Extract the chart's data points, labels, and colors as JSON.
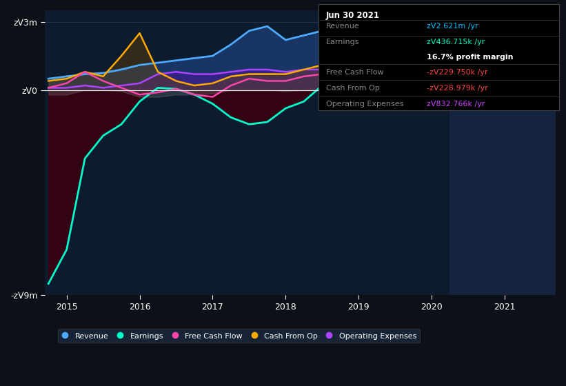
{
  "bg_color": "#0d1117",
  "plot_bg_color": "#0d1b2e",
  "title": "earnings-and-revenue-history",
  "ylabel_top": "zᐯ3m",
  "ylabel_bottom": "-zᐯ9m",
  "ylabel_zero": "zᐯ0",
  "ylim": [
    -9000000,
    3500000
  ],
  "yticks": [
    -9000000,
    0,
    3000000
  ],
  "ytick_labels": [
    "-zᐯ9m",
    "zᐯ0",
    "zᐯ3m"
  ],
  "xlim": [
    2014.7,
    2021.7
  ],
  "xticks": [
    2015,
    2016,
    2017,
    2018,
    2019,
    2020,
    2021
  ],
  "info_box": {
    "date": "Jun 30 2021",
    "revenue_label": "Revenue",
    "revenue_value": "zᐯ2.621m /yr",
    "revenue_color": "#00bfff",
    "earnings_label": "Earnings",
    "earnings_value": "zᐯ436.715k /yr",
    "earnings_color": "#00ffcc",
    "margin_label": "16.7% profit margin",
    "margin_color": "#ffffff",
    "fcf_label": "Free Cash Flow",
    "fcf_value": "-zᐯ229.750k /yr",
    "fcf_color": "#ff4444",
    "cashop_label": "Cash From Op",
    "cashop_value": "-zᐯ228.979k /yr",
    "cashop_color": "#ff4444",
    "opex_label": "Operating Expenses",
    "opex_value": "zᐯ832.766k /yr",
    "opex_color": "#cc44ff"
  },
  "legend": [
    {
      "label": "Revenue",
      "color": "#4daaff"
    },
    {
      "label": "Earnings",
      "color": "#00ffcc"
    },
    {
      "label": "Free Cash Flow",
      "color": "#ff44aa"
    },
    {
      "label": "Cash From Op",
      "color": "#ffaa00"
    },
    {
      "label": "Operating Expenses",
      "color": "#aa44ff"
    }
  ],
  "revenue": {
    "x": [
      2014.75,
      2015.0,
      2015.25,
      2015.5,
      2015.75,
      2016.0,
      2016.25,
      2016.5,
      2016.75,
      2017.0,
      2017.25,
      2017.5,
      2017.75,
      2018.0,
      2018.25,
      2018.5,
      2018.75,
      2019.0,
      2019.25,
      2019.5,
      2019.75,
      2020.0,
      2020.25,
      2020.5,
      2020.75,
      2021.0,
      2021.25,
      2021.5
    ],
    "y": [
      500000,
      600000,
      700000,
      750000,
      900000,
      1100000,
      1200000,
      1300000,
      1400000,
      1500000,
      2000000,
      2600000,
      2800000,
      2200000,
      2400000,
      2600000,
      2600000,
      2600000,
      2700000,
      2650000,
      2700000,
      2650000,
      2600000,
      2650000,
      2650000,
      2600000,
      2621000,
      2621000
    ],
    "color": "#4daaff",
    "fill_color": "#1a3a6e",
    "linewidth": 2.0
  },
  "earnings": {
    "x": [
      2014.75,
      2015.0,
      2015.25,
      2015.5,
      2015.75,
      2016.0,
      2016.25,
      2016.5,
      2016.75,
      2017.0,
      2017.25,
      2017.5,
      2017.75,
      2018.0,
      2018.25,
      2018.5,
      2018.75,
      2019.0,
      2019.25,
      2019.5,
      2019.75,
      2020.0,
      2020.25,
      2020.5,
      2020.75,
      2021.0,
      2021.25,
      2021.5
    ],
    "y": [
      -8500000,
      -7000000,
      -3000000,
      -2000000,
      -1500000,
      -500000,
      100000,
      50000,
      -200000,
      -600000,
      -1200000,
      -1500000,
      -1400000,
      -800000,
      -500000,
      200000,
      100000,
      100000,
      200000,
      300000,
      200000,
      100000,
      -100000,
      -200000,
      -300000,
      -100000,
      100000,
      436715
    ],
    "color": "#00ffcc",
    "fill_color": "#3d0010",
    "linewidth": 2.0
  },
  "free_cash_flow": {
    "x": [
      2014.75,
      2015.0,
      2015.25,
      2015.5,
      2015.75,
      2016.0,
      2016.25,
      2016.5,
      2016.75,
      2017.0,
      2017.25,
      2017.5,
      2017.75,
      2018.0,
      2018.25,
      2018.5,
      2018.75,
      2019.0,
      2019.25,
      2019.5,
      2019.75,
      2020.0,
      2020.25,
      2020.5,
      2020.75,
      2021.0,
      2021.25,
      2021.5
    ],
    "y": [
      100000,
      300000,
      800000,
      400000,
      100000,
      -200000,
      -100000,
      50000,
      -200000,
      -300000,
      200000,
      500000,
      400000,
      400000,
      600000,
      700000,
      600000,
      700000,
      800000,
      700000,
      500000,
      300000,
      200000,
      100000,
      -100000,
      -300000,
      -229750,
      -229750
    ],
    "color": "#ff44aa",
    "linewidth": 1.8
  },
  "cash_from_op": {
    "x": [
      2014.75,
      2015.0,
      2015.25,
      2015.5,
      2015.75,
      2016.0,
      2016.25,
      2016.5,
      2016.75,
      2017.0,
      2017.25,
      2017.5,
      2017.75,
      2018.0,
      2018.25,
      2018.5,
      2018.75,
      2019.0,
      2019.25,
      2019.5,
      2019.75,
      2020.0,
      2020.25,
      2020.5,
      2020.75,
      2021.0,
      2021.25,
      2021.5
    ],
    "y": [
      400000,
      500000,
      800000,
      600000,
      1500000,
      2500000,
      800000,
      400000,
      200000,
      300000,
      600000,
      700000,
      700000,
      700000,
      900000,
      1100000,
      1100000,
      1500000,
      1600000,
      1100000,
      700000,
      500000,
      900000,
      600000,
      300000,
      -100000,
      -228979,
      -228979
    ],
    "color": "#ffaa00",
    "linewidth": 1.8
  },
  "op_expenses": {
    "x": [
      2014.75,
      2015.0,
      2015.25,
      2015.5,
      2015.75,
      2016.0,
      2016.25,
      2016.5,
      2016.75,
      2017.0,
      2017.25,
      2017.5,
      2017.75,
      2018.0,
      2018.25,
      2018.5,
      2018.75,
      2019.0,
      2019.25,
      2019.5,
      2019.75,
      2020.0,
      2020.25,
      2020.5,
      2020.75,
      2021.0,
      2021.25,
      2021.5
    ],
    "y": [
      100000,
      100000,
      200000,
      100000,
      200000,
      300000,
      700000,
      800000,
      700000,
      700000,
      800000,
      900000,
      900000,
      800000,
      900000,
      900000,
      900000,
      700000,
      700000,
      700000,
      700000,
      700000,
      800000,
      700000,
      700000,
      900000,
      832766,
      832766
    ],
    "color": "#aa44ff",
    "linewidth": 1.8
  },
  "gray_band": {
    "x": [
      2014.75,
      2015.0,
      2015.25,
      2015.5,
      2015.75,
      2016.0,
      2016.25,
      2016.5,
      2016.75,
      2017.0,
      2017.25,
      2017.5,
      2017.75,
      2018.0,
      2018.25,
      2018.5,
      2018.75,
      2019.0,
      2019.25,
      2019.5,
      2019.75,
      2020.0,
      2020.25,
      2020.5,
      2020.75,
      2021.0,
      2021.25,
      2021.5
    ],
    "y": [
      -200000,
      -200000,
      0,
      0,
      -50000,
      -300000,
      -300000,
      -200000,
      -200000,
      -150000,
      0,
      0,
      0,
      -50000,
      0,
      0,
      0,
      0,
      50000,
      50000,
      50000,
      50000,
      0,
      -50000,
      -50000,
      -100000,
      -100000,
      -50000
    ],
    "color": "#888888"
  },
  "vertical_line_x": 2020.25,
  "vertical_line_color": "#2a3a5e"
}
